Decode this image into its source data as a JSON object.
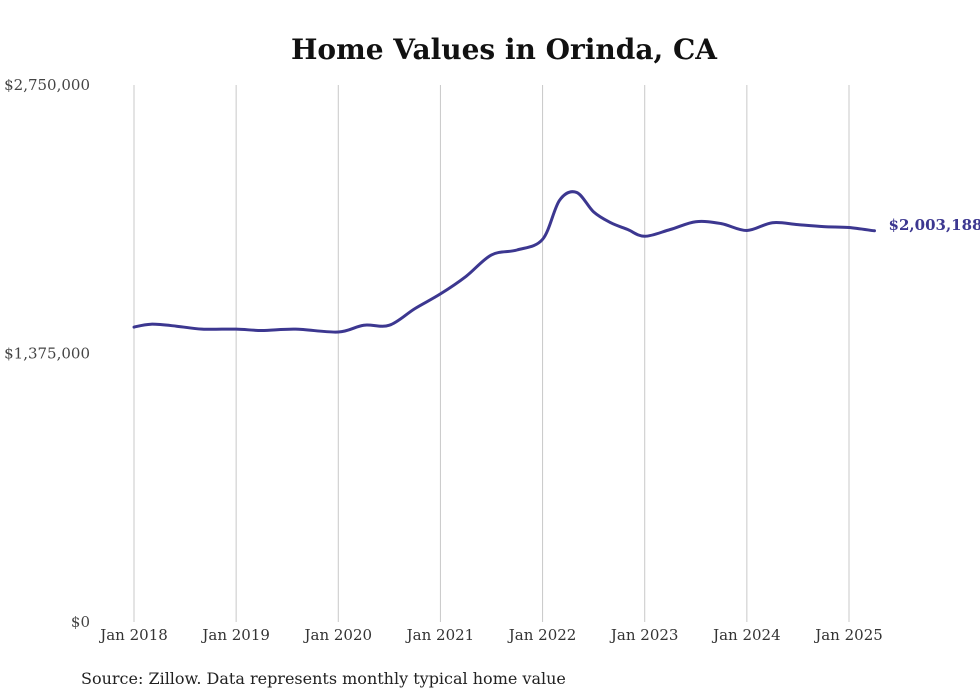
{
  "chart_data": {
    "type": "line",
    "title": "Home Values in Orinda, CA",
    "xlabel": "",
    "ylabel": "",
    "source": "Source: Zillow. Data represents monthly typical home value",
    "ylim": [
      0,
      2750000
    ],
    "y_ticks": [
      {
        "value": 0,
        "label": "$0"
      },
      {
        "value": 1375000,
        "label": "$1,375,000"
      },
      {
        "value": 2750000,
        "label": "$2,750,000"
      }
    ],
    "x_ticks": [
      {
        "value": "2018-01",
        "label": "Jan 2018"
      },
      {
        "value": "2019-01",
        "label": "Jan 2019"
      },
      {
        "value": "2020-01",
        "label": "Jan 2020"
      },
      {
        "value": "2021-01",
        "label": "Jan 2021"
      },
      {
        "value": "2022-01",
        "label": "Jan 2022"
      },
      {
        "value": "2023-01",
        "label": "Jan 2023"
      },
      {
        "value": "2024-01",
        "label": "Jan 2024"
      },
      {
        "value": "2025-01",
        "label": "Jan 2025"
      }
    ],
    "x_range": [
      "2018-01",
      "2025-04"
    ],
    "grid": "vertical",
    "color": "#3c3790",
    "end_label": "$2,003,188",
    "series": [
      {
        "x": [
          "2018-01",
          "2018-03",
          "2018-06",
          "2018-09",
          "2019-01",
          "2019-04",
          "2019-08",
          "2020-01",
          "2020-04",
          "2020-07",
          "2020-10",
          "2021-01",
          "2021-04",
          "2021-07",
          "2021-10",
          "2022-01",
          "2022-03",
          "2022-05",
          "2022-07",
          "2022-09",
          "2022-11",
          "2023-01",
          "2023-04",
          "2023-07",
          "2023-10",
          "2024-01",
          "2024-04",
          "2024-07",
          "2024-10",
          "2025-01",
          "2025-04"
        ],
        "y": [
          1510000,
          1525000,
          1515000,
          1500000,
          1500000,
          1493000,
          1500000,
          1485000,
          1520000,
          1520000,
          1605000,
          1680000,
          1770000,
          1880000,
          1905000,
          1960000,
          2160000,
          2200000,
          2100000,
          2045000,
          2010000,
          1975000,
          2010000,
          2050000,
          2040000,
          2005000,
          2045000,
          2035000,
          2025000,
          2020000,
          2003188
        ]
      }
    ]
  }
}
